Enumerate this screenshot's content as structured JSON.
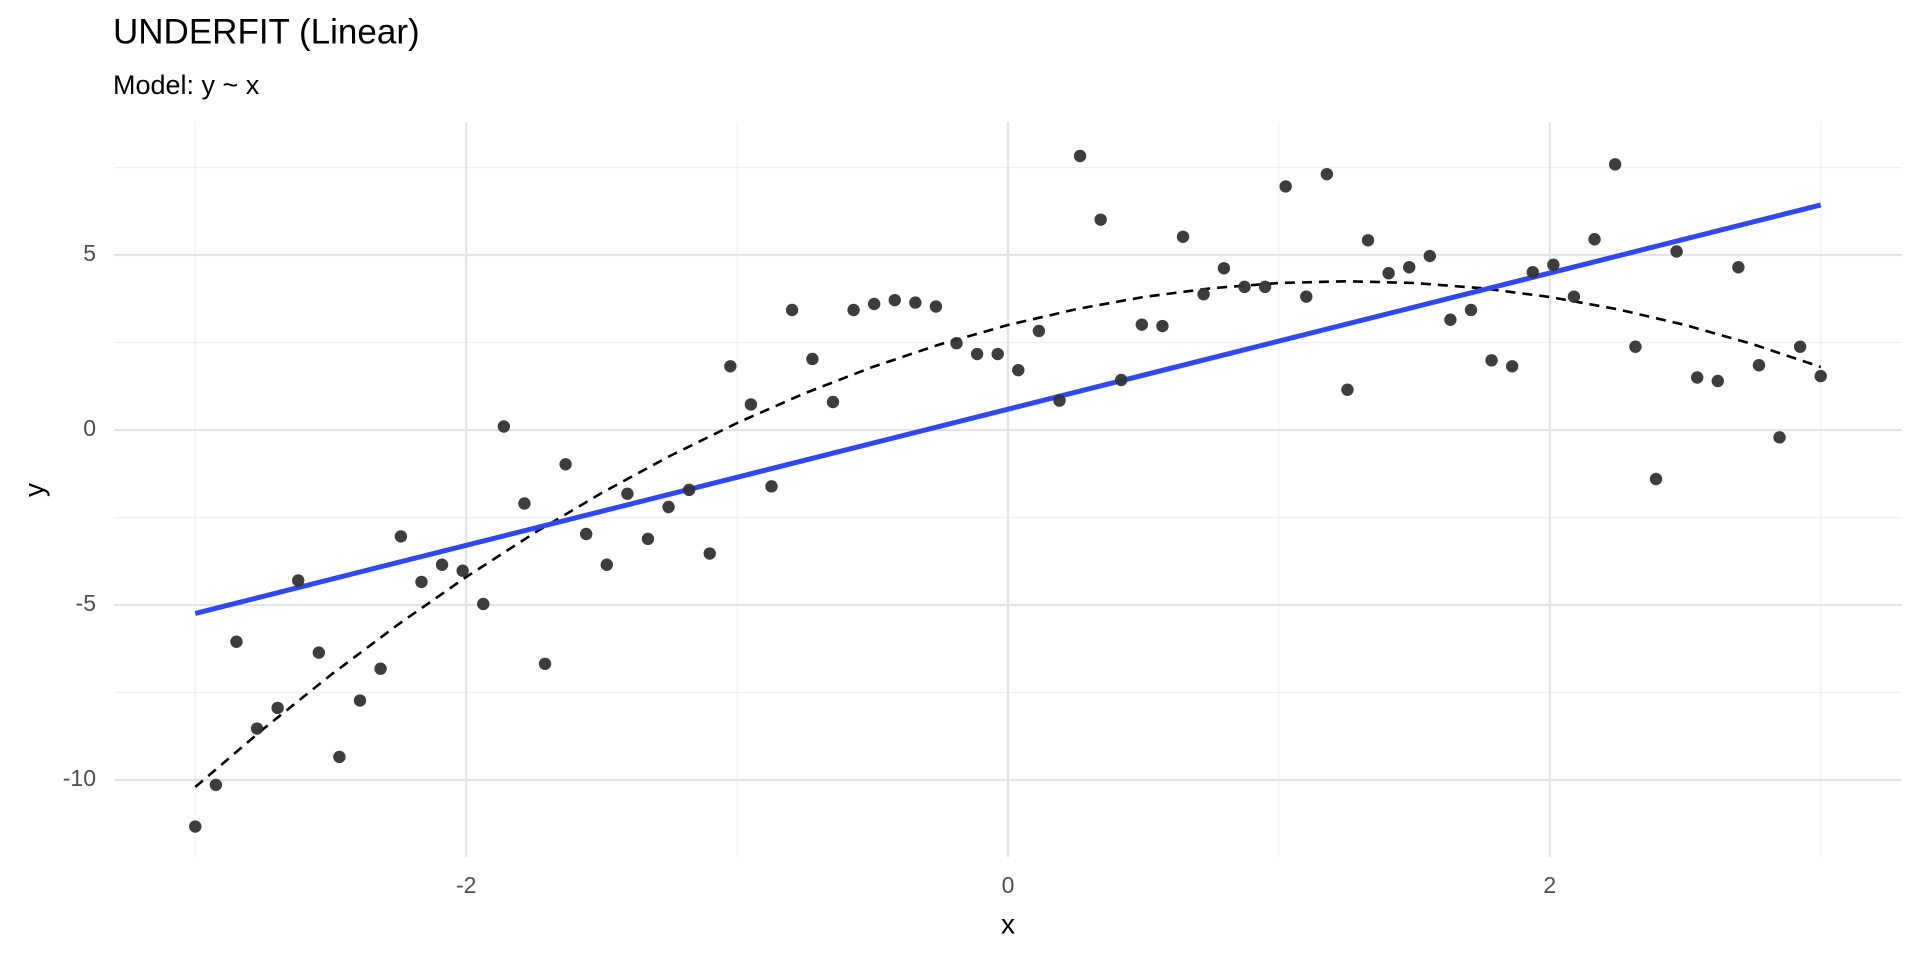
{
  "chart_data": {
    "type": "scatter",
    "title": "UNDERFIT (Linear)",
    "subtitle": "Model: y ~ x",
    "xlabel": "x",
    "ylabel": "y",
    "xlim": [
      -3.3,
      3.3
    ],
    "ylim": [
      -12.2,
      8.8
    ],
    "xticks": [
      -2,
      0,
      2
    ],
    "yticks": [
      -10,
      -5,
      0,
      5
    ],
    "xminor": [
      -3,
      -1,
      1,
      3
    ],
    "yminor": [
      -7.5,
      -2.5,
      2.5,
      7.5
    ],
    "grid": true,
    "series": [
      {
        "type": "scatter",
        "color": "#333333",
        "x": [
          -3,
          -2.924,
          -2.848,
          -2.772,
          -2.696,
          -2.62,
          -2.544,
          -2.468,
          -2.392,
          -2.316,
          -2.241,
          -2.165,
          -2.089,
          -2.013,
          -1.937,
          -1.861,
          -1.785,
          -1.709,
          -1.633,
          -1.557,
          -1.481,
          -1.405,
          -1.329,
          -1.253,
          -1.177,
          -1.101,
          -1.025,
          -0.949,
          -0.873,
          -0.797,
          -0.722,
          -0.646,
          -0.57,
          -0.494,
          -0.418,
          -0.342,
          -0.266,
          -0.19,
          -0.114,
          -0.038,
          0.038,
          0.114,
          0.19,
          0.266,
          0.342,
          0.418,
          0.494,
          0.57,
          0.646,
          0.722,
          0.797,
          0.873,
          0.949,
          1.025,
          1.101,
          1.177,
          1.253,
          1.329,
          1.405,
          1.481,
          1.557,
          1.633,
          1.709,
          1.785,
          1.861,
          1.937,
          2.013,
          2.089,
          2.165,
          2.241,
          2.316,
          2.392,
          2.468,
          2.544,
          2.62,
          2.696,
          2.772,
          2.848,
          2.924,
          3
        ],
        "values": [
          -11.33,
          -10.14,
          -6.05,
          -8.53,
          -7.94,
          -4.3,
          -6.36,
          -9.34,
          -7.73,
          -6.82,
          -3.04,
          -4.34,
          -3.85,
          -4.02,
          -4.97,
          0.1,
          -2.1,
          -6.68,
          -0.98,
          -2.97,
          -3.85,
          -1.82,
          -3.11,
          -2.2,
          -1.71,
          -3.53,
          1.82,
          0.73,
          -1.61,
          3.43,
          2.03,
          0.8,
          3.43,
          3.6,
          3.71,
          3.64,
          3.53,
          2.48,
          2.17,
          2.17,
          1.71,
          2.83,
          0.84,
          7.83,
          6.01,
          1.43,
          3.01,
          2.97,
          5.52,
          3.88,
          4.62,
          4.09,
          4.09,
          6.96,
          3.81,
          7.31,
          1.15,
          5.42,
          4.48,
          4.65,
          4.97,
          3.15,
          3.43,
          1.99,
          1.82,
          4.51,
          4.72,
          3.81,
          5.45,
          7.59,
          2.38,
          -1.4,
          5.1,
          1.5,
          1.4,
          4.65,
          1.85,
          -0.21,
          2.38,
          1.54
        ]
      },
      {
        "type": "line",
        "color": "#2f48f2",
        "dash": false,
        "x": [
          -3,
          3
        ],
        "values": [
          -5.24,
          6.43
        ]
      },
      {
        "type": "line",
        "color": "#000000",
        "dash": true,
        "x": [
          -3,
          -2.75,
          -2.5,
          -2.25,
          -2,
          -1.75,
          -1.5,
          -1.25,
          -1,
          -0.75,
          -0.5,
          -0.25,
          0,
          0.25,
          0.5,
          0.75,
          1,
          1.25,
          1.5,
          1.75,
          2,
          2.25,
          2.5,
          2.75,
          3
        ],
        "values": [
          -10.2,
          -8.55,
          -7,
          -5.55,
          -4.2,
          -2.95,
          -1.8,
          -0.75,
          0.2,
          1.05,
          1.8,
          2.45,
          3,
          3.45,
          3.8,
          4.05,
          4.2,
          4.25,
          4.2,
          4.05,
          3.8,
          3.45,
          3,
          2.45,
          1.8
        ]
      }
    ]
  }
}
